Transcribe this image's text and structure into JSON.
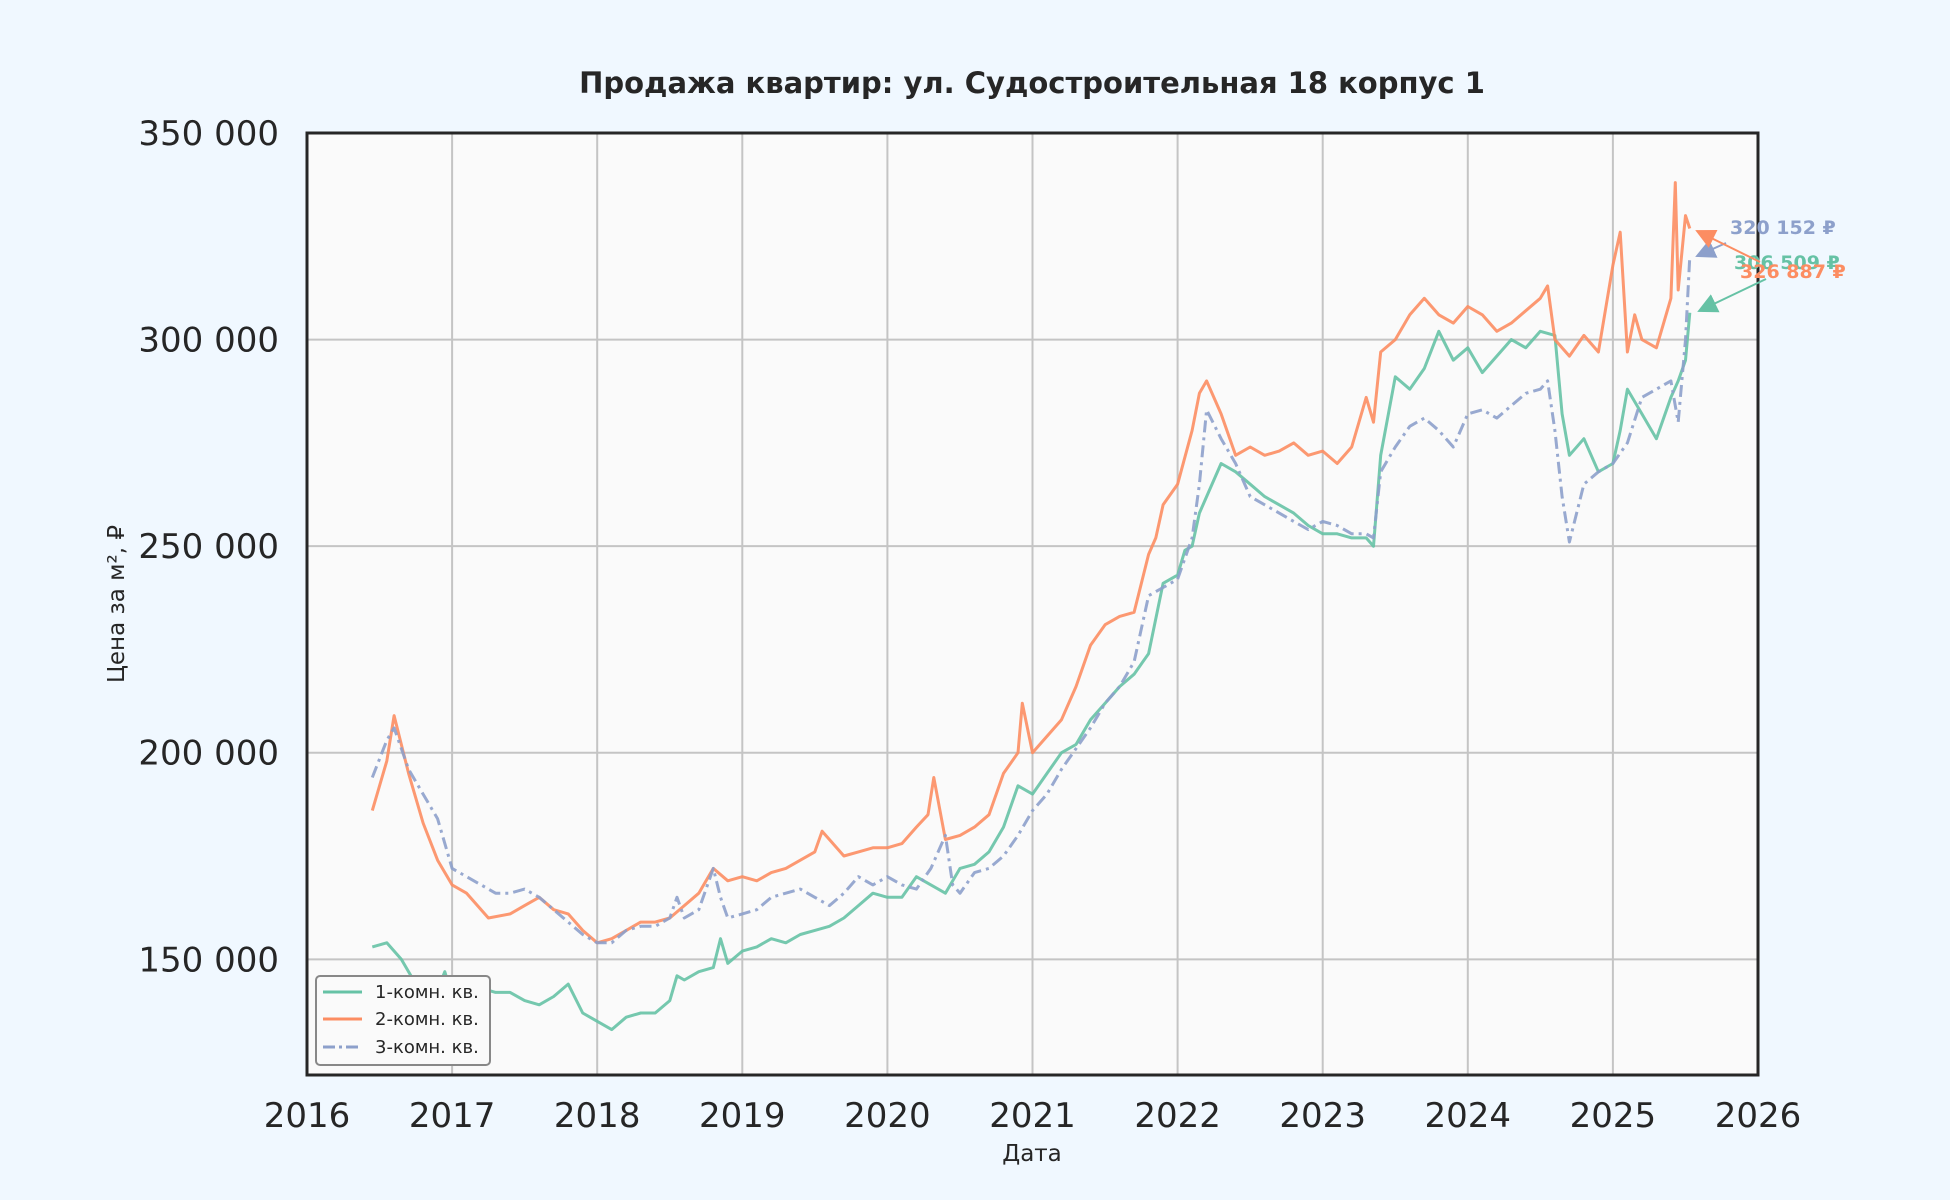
{
  "chart_data": {
    "type": "line",
    "title": "Продажа квартир: ул. Судостроительная 18 корпус 1",
    "xlabel": "Дата",
    "ylabel": "Цена за м², ₽",
    "xlim": [
      2016,
      2026
    ],
    "ylim": [
      122000,
      350000
    ],
    "x_ticks": [
      2016,
      2017,
      2018,
      2019,
      2020,
      2021,
      2022,
      2023,
      2024,
      2025,
      2026
    ],
    "x_tick_labels": [
      "2016",
      "2017",
      "2018",
      "2019",
      "2020",
      "2021",
      "2022",
      "2023",
      "2024",
      "2025",
      "2026"
    ],
    "y_ticks": [
      150000,
      200000,
      250000,
      300000,
      350000
    ],
    "y_tick_labels": [
      "150 000",
      "200 000",
      "250 000",
      "300 000",
      "350 000"
    ],
    "grid": true,
    "legend_position": "lower-left",
    "background": "#fafafa",
    "series": [
      {
        "name": "1-комн. кв.",
        "color": "#66c2a5",
        "style": "solid",
        "x": [
          2016.45,
          2016.55,
          2016.65,
          2016.75,
          2016.85,
          2016.95,
          2017.0,
          2017.1,
          2017.2,
          2017.3,
          2017.4,
          2017.5,
          2017.6,
          2017.7,
          2017.8,
          2017.9,
          2018.0,
          2018.1,
          2018.2,
          2018.3,
          2018.4,
          2018.5,
          2018.55,
          2018.6,
          2018.7,
          2018.8,
          2018.85,
          2018.9,
          2019.0,
          2019.1,
          2019.2,
          2019.3,
          2019.4,
          2019.5,
          2019.6,
          2019.7,
          2019.8,
          2019.9,
          2020.0,
          2020.1,
          2020.2,
          2020.3,
          2020.4,
          2020.5,
          2020.6,
          2020.7,
          2020.8,
          2020.9,
          2021.0,
          2021.1,
          2021.2,
          2021.3,
          2021.4,
          2021.5,
          2021.6,
          2021.7,
          2021.8,
          2021.9,
          2022.0,
          2022.05,
          2022.1,
          2022.15,
          2022.2,
          2022.3,
          2022.4,
          2022.5,
          2022.6,
          2022.7,
          2022.8,
          2022.9,
          2023.0,
          2023.1,
          2023.2,
          2023.3,
          2023.35,
          2023.4,
          2023.5,
          2023.6,
          2023.7,
          2023.8,
          2023.9,
          2024.0,
          2024.1,
          2024.2,
          2024.3,
          2024.4,
          2024.5,
          2024.6,
          2024.65,
          2024.7,
          2024.8,
          2024.9,
          2025.0,
          2025.05,
          2025.1,
          2025.2,
          2025.3,
          2025.4,
          2025.45,
          2025.5,
          2025.53
        ],
        "y": [
          153000,
          154000,
          150000,
          144000,
          138000,
          147000,
          141000,
          142000,
          143000,
          142000,
          142000,
          140000,
          139000,
          141000,
          144000,
          137000,
          135000,
          133000,
          136000,
          137000,
          137000,
          140000,
          146000,
          145000,
          147000,
          148000,
          155000,
          149000,
          152000,
          153000,
          155000,
          154000,
          156000,
          157000,
          158000,
          160000,
          163000,
          166000,
          165000,
          165000,
          170000,
          168000,
          166000,
          172000,
          173000,
          176000,
          182000,
          192000,
          190000,
          195000,
          200000,
          202000,
          208000,
          212000,
          216000,
          219000,
          224000,
          241000,
          243000,
          249000,
          250000,
          258000,
          262000,
          270000,
          268000,
          265000,
          262000,
          260000,
          258000,
          255000,
          253000,
          253000,
          252000,
          252000,
          250000,
          272000,
          291000,
          288000,
          293000,
          302000,
          295000,
          298000,
          292000,
          296000,
          300000,
          298000,
          302000,
          301000,
          282000,
          272000,
          276000,
          268000,
          270000,
          278000,
          288000,
          282000,
          276000,
          286000,
          290000,
          295000,
          306509
        ]
      },
      {
        "name": "2-комн. кв.",
        "color": "#fc8d62",
        "style": "solid",
        "x": [
          2016.45,
          2016.55,
          2016.6,
          2016.7,
          2016.8,
          2016.9,
          2017.0,
          2017.1,
          2017.25,
          2017.4,
          2017.5,
          2017.6,
          2017.7,
          2017.8,
          2017.9,
          2018.0,
          2018.1,
          2018.2,
          2018.3,
          2018.4,
          2018.5,
          2018.6,
          2018.7,
          2018.8,
          2018.9,
          2019.0,
          2019.1,
          2019.2,
          2019.3,
          2019.4,
          2019.5,
          2019.55,
          2019.6,
          2019.7,
          2019.8,
          2019.9,
          2020.0,
          2020.1,
          2020.2,
          2020.28,
          2020.32,
          2020.4,
          2020.5,
          2020.6,
          2020.7,
          2020.8,
          2020.9,
          2020.93,
          2021.0,
          2021.1,
          2021.2,
          2021.3,
          2021.4,
          2021.5,
          2021.6,
          2021.7,
          2021.8,
          2021.85,
          2021.9,
          2022.0,
          2022.1,
          2022.15,
          2022.2,
          2022.3,
          2022.4,
          2022.5,
          2022.6,
          2022.7,
          2022.8,
          2022.9,
          2023.0,
          2023.1,
          2023.2,
          2023.3,
          2023.35,
          2023.4,
          2023.5,
          2023.6,
          2023.7,
          2023.8,
          2023.9,
          2024.0,
          2024.1,
          2024.2,
          2024.3,
          2024.4,
          2024.5,
          2024.55,
          2024.6,
          2024.7,
          2024.8,
          2024.9,
          2025.0,
          2025.05,
          2025.1,
          2025.15,
          2025.2,
          2025.3,
          2025.4,
          2025.43,
          2025.45,
          2025.5,
          2025.53
        ],
        "y": [
          186000,
          198000,
          209000,
          195000,
          183000,
          174000,
          168000,
          166000,
          160000,
          161000,
          163000,
          165000,
          162000,
          161000,
          157000,
          154000,
          155000,
          157000,
          159000,
          159000,
          160000,
          163000,
          166000,
          172000,
          169000,
          170000,
          169000,
          171000,
          172000,
          174000,
          176000,
          181000,
          179000,
          175000,
          176000,
          177000,
          177000,
          178000,
          182000,
          185000,
          194000,
          179000,
          180000,
          182000,
          185000,
          195000,
          200000,
          212000,
          200000,
          204000,
          208000,
          216000,
          226000,
          231000,
          233000,
          234000,
          248000,
          252000,
          260000,
          265000,
          278000,
          287000,
          290000,
          282000,
          272000,
          274000,
          272000,
          273000,
          275000,
          272000,
          273000,
          270000,
          274000,
          286000,
          280000,
          297000,
          300000,
          306000,
          310000,
          306000,
          304000,
          308000,
          306000,
          302000,
          304000,
          307000,
          310000,
          313000,
          300000,
          296000,
          301000,
          297000,
          318000,
          326000,
          297000,
          306000,
          300000,
          298000,
          310000,
          338000,
          312000,
          330000,
          326887
        ]
      },
      {
        "name": "3-комн. кв.",
        "color": "#8da0cb",
        "style": "dashdot",
        "x": [
          2016.45,
          2016.55,
          2016.6,
          2016.7,
          2016.8,
          2016.9,
          2017.0,
          2017.1,
          2017.2,
          2017.3,
          2017.4,
          2017.5,
          2017.6,
          2017.7,
          2017.8,
          2017.9,
          2018.0,
          2018.1,
          2018.2,
          2018.3,
          2018.4,
          2018.5,
          2018.55,
          2018.6,
          2018.7,
          2018.8,
          2018.85,
          2018.9,
          2019.0,
          2019.1,
          2019.2,
          2019.3,
          2019.4,
          2019.5,
          2019.6,
          2019.7,
          2019.8,
          2019.9,
          2020.0,
          2020.1,
          2020.2,
          2020.3,
          2020.4,
          2020.45,
          2020.5,
          2020.6,
          2020.7,
          2020.8,
          2020.9,
          2021.0,
          2021.1,
          2021.2,
          2021.3,
          2021.4,
          2021.5,
          2021.6,
          2021.7,
          2021.8,
          2021.9,
          2022.0,
          2022.1,
          2022.15,
          2022.2,
          2022.3,
          2022.4,
          2022.5,
          2022.6,
          2022.7,
          2022.8,
          2022.9,
          2023.0,
          2023.1,
          2023.2,
          2023.3,
          2023.35,
          2023.4,
          2023.5,
          2023.6,
          2023.7,
          2023.8,
          2023.9,
          2024.0,
          2024.1,
          2024.2,
          2024.3,
          2024.4,
          2024.5,
          2024.55,
          2024.6,
          2024.65,
          2024.7,
          2024.8,
          2024.9,
          2025.0,
          2025.1,
          2025.2,
          2025.3,
          2025.4,
          2025.45,
          2025.5,
          2025.53
        ],
        "y": [
          194000,
          203000,
          206000,
          196000,
          190000,
          184000,
          172000,
          170000,
          168000,
          166000,
          166000,
          167000,
          165000,
          162000,
          159000,
          156000,
          154000,
          154000,
          157000,
          158000,
          158000,
          160000,
          165000,
          160000,
          162000,
          172000,
          165000,
          160000,
          161000,
          162000,
          165000,
          166000,
          167000,
          165000,
          163000,
          166000,
          170000,
          168000,
          170000,
          168000,
          167000,
          172000,
          180000,
          168000,
          166000,
          171000,
          172000,
          175000,
          180000,
          186000,
          190000,
          196000,
          201000,
          206000,
          212000,
          216000,
          222000,
          238000,
          240000,
          242000,
          252000,
          265000,
          283000,
          276000,
          270000,
          262000,
          260000,
          258000,
          256000,
          254000,
          256000,
          255000,
          253000,
          253000,
          252000,
          268000,
          274000,
          279000,
          281000,
          278000,
          274000,
          282000,
          283000,
          281000,
          284000,
          287000,
          288000,
          290000,
          278000,
          262000,
          251000,
          265000,
          268000,
          270000,
          275000,
          286000,
          288000,
          290000,
          280000,
          300000,
          320152
        ]
      }
    ],
    "annotations": [
      {
        "text": "320 152 ₽",
        "color": "#8da0cb"
      },
      {
        "text": "306 509 ₽",
        "color": "#66c2a5"
      },
      {
        "text": "326 887 ₽",
        "color": "#fc8d62"
      }
    ]
  }
}
